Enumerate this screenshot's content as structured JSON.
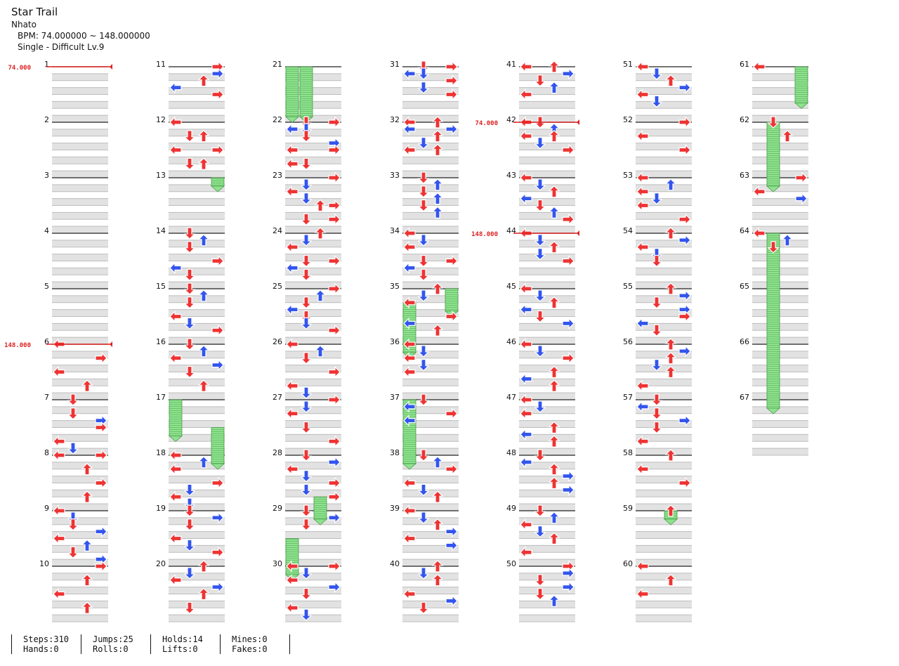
{
  "header": {
    "title": "Star Trail",
    "artist": "Nhato",
    "bpm_line": "BPM: 74.000000 ~ 148.000000",
    "difficulty_line": "Single - Difficult Lv.9"
  },
  "footer": {
    "stats": [
      {
        "line1": "Steps:310",
        "line2": "Hands:0"
      },
      {
        "line1": "Jumps:25",
        "line2": "Rolls:0"
      },
      {
        "line1": "Holds:14",
        "line2": "Lifts:0"
      },
      {
        "line1": "Mines:0",
        "line2": "Fakes:0"
      }
    ]
  },
  "colors": {
    "quarter_note": "#ee3333",
    "eighth_note": "#3355ee",
    "hold_body": "#88e088",
    "bpm_marker": "#dd2222",
    "beat_band": "#e2e2e2"
  },
  "chart_data": {
    "type": "step chart",
    "measures_total": 67,
    "measures_per_column": 10,
    "lanes": [
      "left",
      "down",
      "up",
      "right"
    ],
    "bpm_changes": [
      {
        "measure": 1,
        "bpm": "74.000"
      },
      {
        "measure": 6,
        "bpm": "148.000"
      },
      {
        "measure": 42,
        "bpm": "74.000"
      },
      {
        "measure": 44,
        "bpm": "148.000"
      }
    ],
    "notes": [
      [
        6,
        0.0,
        0
      ],
      [
        6,
        0.5,
        3
      ],
      [
        6,
        1.0,
        0
      ],
      [
        6,
        1.5,
        2
      ],
      [
        7,
        0.0,
        1
      ],
      [
        7,
        0.5,
        1
      ],
      [
        7,
        0.75,
        3
      ],
      [
        7,
        1.0,
        3
      ],
      [
        7,
        1.5,
        0
      ],
      [
        7,
        1.75,
        1
      ],
      [
        7,
        2.0,
        0
      ],
      [
        8,
        0.0,
        3
      ],
      [
        8,
        0.5,
        2
      ],
      [
        8,
        1.0,
        3
      ],
      [
        8,
        1.5,
        2
      ],
      [
        9,
        0.0,
        0
      ],
      [
        9,
        0.25,
        1
      ],
      [
        9,
        0.5,
        1
      ],
      [
        9,
        0.75,
        3
      ],
      [
        9,
        1.0,
        0
      ],
      [
        9,
        1.25,
        2
      ],
      [
        9,
        1.5,
        1
      ],
      [
        9,
        1.75,
        3
      ],
      [
        10,
        0.0,
        3
      ],
      [
        10,
        0.5,
        2
      ],
      [
        10,
        1.0,
        0
      ],
      [
        10,
        1.5,
        2
      ],
      [
        11,
        0.0,
        3
      ],
      [
        11,
        0.25,
        3
      ],
      [
        11,
        0.5,
        2
      ],
      [
        11,
        0.75,
        0
      ],
      [
        11,
        1.0,
        3
      ],
      [
        12,
        0.0,
        0
      ],
      [
        12,
        0.5,
        1
      ],
      [
        12,
        0.5,
        2
      ],
      [
        12,
        1.0,
        0
      ],
      [
        12,
        1.0,
        3
      ],
      [
        12,
        1.5,
        1
      ],
      [
        12,
        1.5,
        2
      ],
      [
        14,
        0.0,
        1
      ],
      [
        14,
        0.25,
        2
      ],
      [
        14,
        0.5,
        1
      ],
      [
        14,
        1.0,
        3
      ],
      [
        14,
        1.25,
        0
      ],
      [
        14,
        1.5,
        1
      ],
      [
        15,
        0.0,
        1
      ],
      [
        15,
        0.25,
        2
      ],
      [
        15,
        0.5,
        1
      ],
      [
        15,
        1.0,
        0
      ],
      [
        15,
        1.25,
        1
      ],
      [
        15,
        1.5,
        3
      ],
      [
        16,
        0.0,
        1
      ],
      [
        16,
        0.25,
        2
      ],
      [
        16,
        0.5,
        0
      ],
      [
        16,
        0.75,
        3
      ],
      [
        16,
        1.0,
        1
      ],
      [
        16,
        1.5,
        2
      ],
      [
        18,
        0.0,
        0
      ],
      [
        18,
        0.25,
        2
      ],
      [
        18,
        0.5,
        0
      ],
      [
        18,
        1.0,
        3
      ],
      [
        18,
        1.25,
        1
      ],
      [
        18,
        1.5,
        0
      ],
      [
        18,
        1.75,
        1
      ],
      [
        19,
        0.0,
        1
      ],
      [
        19,
        0.25,
        3
      ],
      [
        19,
        0.5,
        1
      ],
      [
        19,
        1.0,
        0
      ],
      [
        19,
        1.25,
        1
      ],
      [
        19,
        1.5,
        3
      ],
      [
        20,
        0.0,
        2
      ],
      [
        20,
        0.25,
        1
      ],
      [
        20,
        0.5,
        0
      ],
      [
        20,
        0.75,
        3
      ],
      [
        20,
        1.0,
        2
      ],
      [
        20,
        1.5,
        1
      ],
      [
        22,
        0.0,
        1
      ],
      [
        22,
        0.0,
        3
      ],
      [
        22,
        0.25,
        0
      ],
      [
        22,
        0.25,
        1
      ],
      [
        22,
        0.5,
        1
      ],
      [
        22,
        0.75,
        3
      ],
      [
        22,
        1.0,
        0
      ],
      [
        22,
        1.0,
        3
      ],
      [
        22,
        1.5,
        0
      ],
      [
        22,
        1.5,
        1
      ],
      [
        23,
        0.0,
        3
      ],
      [
        23,
        0.25,
        1
      ],
      [
        23,
        0.5,
        0
      ],
      [
        23,
        0.75,
        1
      ],
      [
        23,
        1.0,
        2
      ],
      [
        23,
        1.0,
        3
      ],
      [
        23,
        1.5,
        1
      ],
      [
        23,
        1.5,
        3
      ],
      [
        24,
        0.0,
        2
      ],
      [
        24,
        0.25,
        1
      ],
      [
        24,
        0.5,
        0
      ],
      [
        24,
        1.0,
        1
      ],
      [
        24,
        1.0,
        3
      ],
      [
        24,
        1.25,
        0
      ],
      [
        24,
        1.5,
        1
      ],
      [
        25,
        0.0,
        3
      ],
      [
        25,
        0.25,
        2
      ],
      [
        25,
        0.5,
        1
      ],
      [
        25,
        0.75,
        0
      ],
      [
        25,
        1.0,
        1
      ],
      [
        25,
        1.25,
        1
      ],
      [
        25,
        1.5,
        3
      ],
      [
        26,
        0.0,
        0
      ],
      [
        26,
        0.25,
        2
      ],
      [
        26,
        0.5,
        1
      ],
      [
        26,
        1.0,
        3
      ],
      [
        26,
        1.5,
        0
      ],
      [
        26,
        1.75,
        1
      ],
      [
        27,
        0.0,
        3
      ],
      [
        27,
        0.25,
        1
      ],
      [
        27,
        0.5,
        0
      ],
      [
        27,
        1.0,
        1
      ],
      [
        27,
        1.5,
        3
      ],
      [
        28,
        0.0,
        1
      ],
      [
        28,
        0.25,
        3
      ],
      [
        28,
        0.5,
        0
      ],
      [
        28,
        0.75,
        1
      ],
      [
        28,
        1.0,
        3
      ],
      [
        28,
        1.25,
        1
      ],
      [
        28,
        1.5,
        3
      ],
      [
        29,
        0.0,
        1
      ],
      [
        29,
        0.25,
        3
      ],
      [
        29,
        0.5,
        1
      ],
      [
        30,
        0.0,
        0
      ],
      [
        30,
        0.0,
        3
      ],
      [
        30,
        0.25,
        1
      ],
      [
        30,
        0.5,
        0
      ],
      [
        30,
        0.75,
        3
      ],
      [
        30,
        1.0,
        1
      ],
      [
        30,
        1.5,
        0
      ],
      [
        30,
        1.75,
        1
      ],
      [
        31,
        0.0,
        1
      ],
      [
        31,
        0.0,
        3
      ],
      [
        31,
        0.25,
        0
      ],
      [
        31,
        0.25,
        1
      ],
      [
        31,
        0.5,
        3
      ],
      [
        31,
        0.75,
        1
      ],
      [
        31,
        1.0,
        3
      ],
      [
        32,
        0.0,
        0
      ],
      [
        32,
        0.0,
        2
      ],
      [
        32,
        0.25,
        0
      ],
      [
        32,
        0.25,
        3
      ],
      [
        32,
        0.5,
        2
      ],
      [
        32,
        0.75,
        1
      ],
      [
        32,
        1.0,
        0
      ],
      [
        32,
        1.0,
        2
      ],
      [
        33,
        0.0,
        1
      ],
      [
        33,
        0.25,
        2
      ],
      [
        33,
        0.5,
        1
      ],
      [
        33,
        0.75,
        2
      ],
      [
        33,
        1.0,
        1
      ],
      [
        33,
        1.25,
        2
      ],
      [
        34,
        0.0,
        0
      ],
      [
        34,
        0.25,
        1
      ],
      [
        34,
        0.5,
        0
      ],
      [
        34,
        1.0,
        1
      ],
      [
        34,
        1.0,
        3
      ],
      [
        34,
        1.25,
        0
      ],
      [
        34,
        1.5,
        1
      ],
      [
        35,
        0.0,
        2
      ],
      [
        35,
        0.25,
        1
      ],
      [
        35,
        0.5,
        0
      ],
      [
        35,
        1.0,
        3
      ],
      [
        35,
        1.25,
        0
      ],
      [
        35,
        1.5,
        2
      ],
      [
        36,
        0.0,
        0
      ],
      [
        36,
        0.25,
        1
      ],
      [
        36,
        0.5,
        0
      ],
      [
        36,
        0.75,
        1
      ],
      [
        36,
        1.0,
        0
      ],
      [
        37,
        0.0,
        1
      ],
      [
        37,
        0.25,
        0
      ],
      [
        37,
        0.5,
        3
      ],
      [
        37,
        0.75,
        0
      ],
      [
        38,
        0.0,
        1
      ],
      [
        38,
        0.25,
        2
      ],
      [
        38,
        0.5,
        3
      ],
      [
        38,
        1.0,
        0
      ],
      [
        38,
        1.25,
        1
      ],
      [
        38,
        1.5,
        2
      ],
      [
        39,
        0.0,
        0
      ],
      [
        39,
        0.25,
        1
      ],
      [
        39,
        0.5,
        2
      ],
      [
        39,
        0.75,
        3
      ],
      [
        39,
        1.0,
        0
      ],
      [
        39,
        1.25,
        3
      ],
      [
        40,
        0.0,
        2
      ],
      [
        40,
        0.25,
        1
      ],
      [
        40,
        0.5,
        2
      ],
      [
        40,
        1.0,
        0
      ],
      [
        40,
        1.25,
        3
      ],
      [
        40,
        1.5,
        1
      ],
      [
        41,
        0.0,
        0
      ],
      [
        41,
        0.0,
        2
      ],
      [
        41,
        0.25,
        3
      ],
      [
        41,
        0.5,
        1
      ],
      [
        41,
        0.75,
        2
      ],
      [
        41,
        1.0,
        0
      ],
      [
        42,
        0.0,
        0
      ],
      [
        42,
        0.0,
        1
      ],
      [
        42,
        0.25,
        2
      ],
      [
        42,
        0.5,
        0
      ],
      [
        42,
        0.5,
        2
      ],
      [
        42,
        0.75,
        1
      ],
      [
        42,
        1.0,
        3
      ],
      [
        43,
        0.0,
        0
      ],
      [
        43,
        0.25,
        1
      ],
      [
        43,
        0.5,
        2
      ],
      [
        43,
        0.75,
        0
      ],
      [
        43,
        1.0,
        1
      ],
      [
        43,
        1.25,
        2
      ],
      [
        43,
        1.5,
        3
      ],
      [
        44,
        0.0,
        0
      ],
      [
        44,
        0.25,
        1
      ],
      [
        44,
        0.5,
        2
      ],
      [
        44,
        0.75,
        1
      ],
      [
        44,
        1.0,
        3
      ],
      [
        45,
        0.0,
        0
      ],
      [
        45,
        0.25,
        1
      ],
      [
        45,
        0.5,
        2
      ],
      [
        45,
        0.75,
        0
      ],
      [
        45,
        1.0,
        1
      ],
      [
        45,
        1.25,
        3
      ],
      [
        46,
        0.0,
        0
      ],
      [
        46,
        0.25,
        1
      ],
      [
        46,
        0.5,
        3
      ],
      [
        46,
        1.0,
        2
      ],
      [
        46,
        1.25,
        0
      ],
      [
        46,
        1.5,
        2
      ],
      [
        47,
        0.0,
        0
      ],
      [
        47,
        0.25,
        1
      ],
      [
        47,
        0.5,
        0
      ],
      [
        47,
        1.0,
        2
      ],
      [
        47,
        1.25,
        0
      ],
      [
        47,
        1.5,
        2
      ],
      [
        48,
        0.0,
        1
      ],
      [
        48,
        0.25,
        0
      ],
      [
        48,
        0.5,
        2
      ],
      [
        48,
        0.75,
        3
      ],
      [
        48,
        1.0,
        2
      ],
      [
        48,
        1.25,
        3
      ],
      [
        49,
        0.0,
        1
      ],
      [
        49,
        0.25,
        2
      ],
      [
        49,
        0.5,
        0
      ],
      [
        49,
        0.75,
        1
      ],
      [
        49,
        1.0,
        2
      ],
      [
        49,
        1.5,
        0
      ],
      [
        50,
        0.0,
        3
      ],
      [
        50,
        0.25,
        3
      ],
      [
        50,
        0.5,
        1
      ],
      [
        50,
        0.75,
        3
      ],
      [
        50,
        1.0,
        1
      ],
      [
        50,
        1.25,
        2
      ],
      [
        51,
        0.0,
        0
      ],
      [
        51,
        0.25,
        1
      ],
      [
        51,
        0.5,
        2
      ],
      [
        51,
        0.75,
        3
      ],
      [
        51,
        1.0,
        0
      ],
      [
        51,
        1.25,
        1
      ],
      [
        52,
        0.0,
        3
      ],
      [
        52,
        0.5,
        0
      ],
      [
        52,
        1.0,
        3
      ],
      [
        53,
        0.0,
        0
      ],
      [
        53,
        0.25,
        2
      ],
      [
        53,
        0.5,
        0
      ],
      [
        53,
        0.75,
        1
      ],
      [
        53,
        1.0,
        0
      ],
      [
        53,
        1.5,
        3
      ],
      [
        54,
        0.0,
        2
      ],
      [
        54,
        0.25,
        3
      ],
      [
        54,
        0.5,
        0
      ],
      [
        54,
        0.75,
        1
      ],
      [
        54,
        1.0,
        1
      ],
      [
        55,
        0.0,
        2
      ],
      [
        55,
        0.25,
        3
      ],
      [
        55,
        0.5,
        1
      ],
      [
        55,
        0.75,
        3
      ],
      [
        55,
        1.0,
        3
      ],
      [
        55,
        1.25,
        0
      ],
      [
        55,
        1.5,
        1
      ],
      [
        56,
        0.0,
        2
      ],
      [
        56,
        0.25,
        3
      ],
      [
        56,
        0.5,
        2
      ],
      [
        56,
        0.75,
        1
      ],
      [
        56,
        1.0,
        2
      ],
      [
        56,
        1.5,
        0
      ],
      [
        57,
        0.0,
        1
      ],
      [
        57,
        0.25,
        0
      ],
      [
        57,
        0.5,
        1
      ],
      [
        57,
        0.75,
        3
      ],
      [
        57,
        1.0,
        1
      ],
      [
        57,
        1.5,
        0
      ],
      [
        58,
        0.0,
        2
      ],
      [
        58,
        0.5,
        0
      ],
      [
        58,
        1.0,
        3
      ],
      [
        59,
        0.0,
        2
      ],
      [
        60,
        0.0,
        0
      ],
      [
        60,
        0.5,
        2
      ],
      [
        60,
        1.0,
        0
      ],
      [
        61,
        0.0,
        0
      ],
      [
        62,
        0.0,
        1
      ],
      [
        62,
        0.5,
        2
      ],
      [
        63,
        0.0,
        3
      ],
      [
        63,
        0.5,
        0
      ],
      [
        63,
        0.75,
        3
      ],
      [
        64,
        0.0,
        0
      ],
      [
        64,
        0.25,
        2
      ],
      [
        64,
        0.5,
        1
      ]
    ],
    "holds": [
      [
        13,
        0.0,
        13.0,
        3
      ],
      [
        17,
        0.0,
        17.5,
        0
      ],
      [
        18,
        0.0,
        17.5,
        3
      ],
      [
        21,
        0.0,
        21.75,
        0
      ],
      [
        21,
        0.0,
        21.75,
        1
      ],
      [
        29,
        0.0,
        28.75,
        2
      ],
      [
        30,
        0.0,
        29.5,
        0
      ],
      [
        35,
        0.0,
        35.25,
        3
      ],
      [
        36,
        0.0,
        35.25,
        0
      ],
      [
        38,
        0.0,
        37.0,
        0
      ],
      [
        59,
        0.0,
        59.0,
        2
      ],
      [
        61,
        0.0,
        61.5,
        3
      ],
      [
        63,
        0.0,
        62.0,
        1
      ],
      [
        67,
        0.0,
        64.0,
        1
      ]
    ]
  }
}
